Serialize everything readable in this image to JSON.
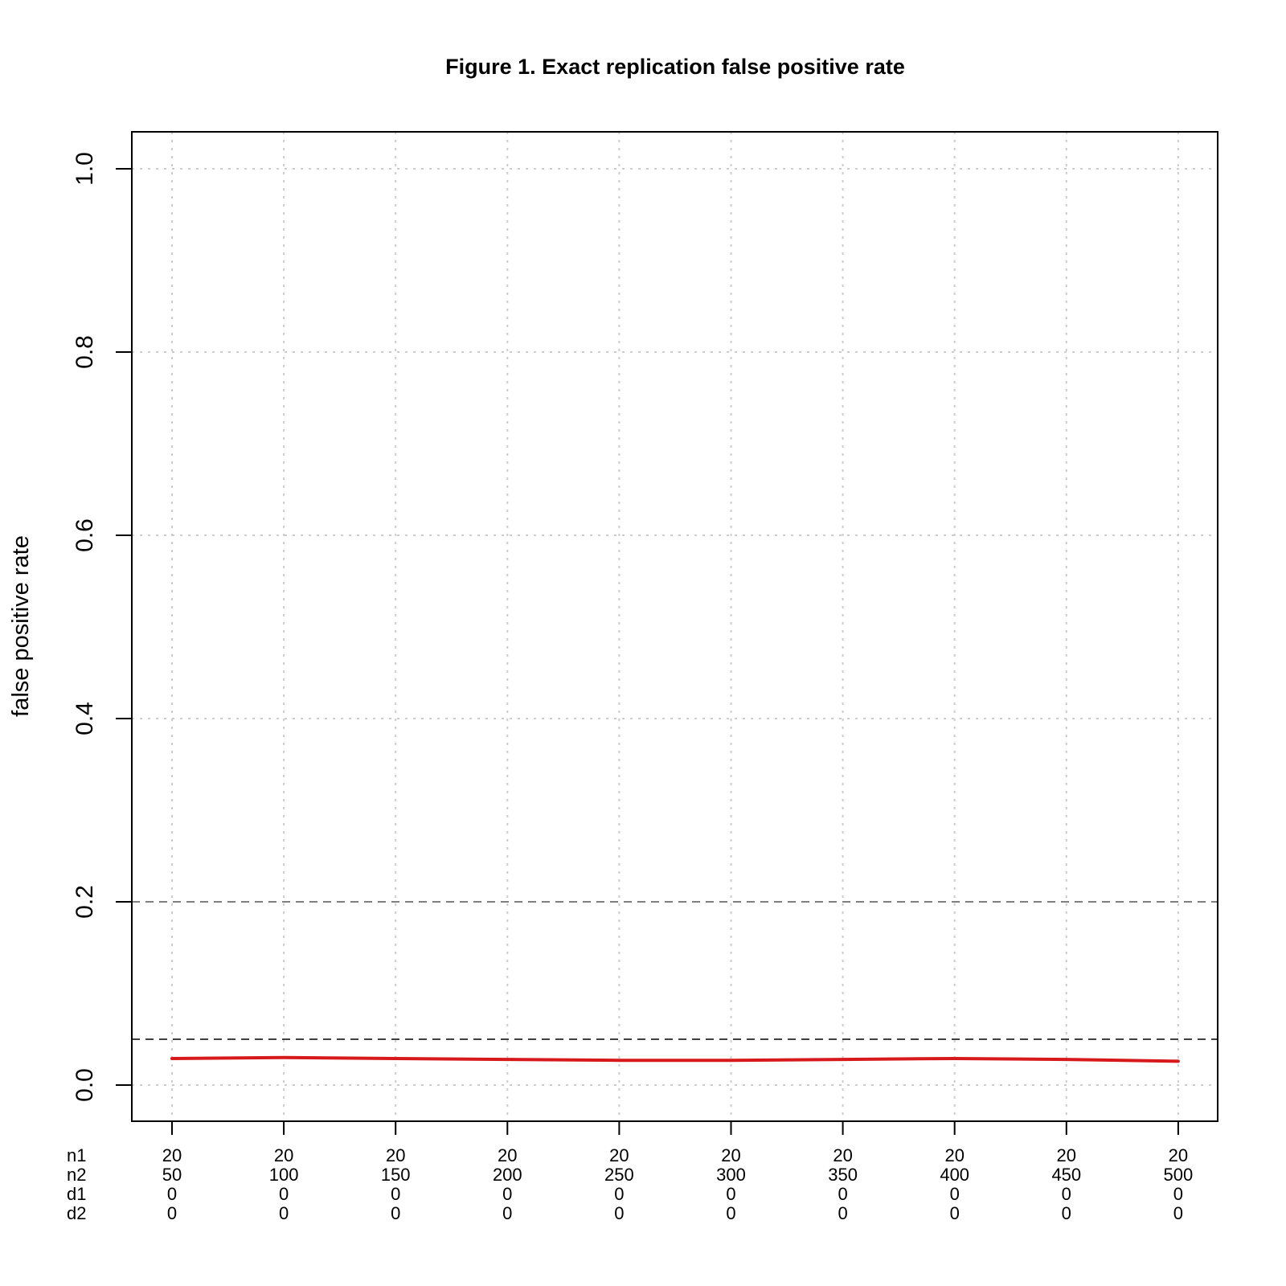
{
  "chart_data": {
    "type": "line",
    "title": "Figure 1. Exact replication false positive rate",
    "xlabel": "",
    "ylabel": "false positive rate",
    "ylim": [
      0,
      1
    ],
    "yticks": [
      "0.0",
      "0.2",
      "0.4",
      "0.6",
      "0.8",
      "1.0"
    ],
    "grid": true,
    "x": [
      1,
      2,
      3,
      4,
      5,
      6,
      7,
      8,
      9,
      10
    ],
    "x_tick_rows": {
      "labels": [
        "n1",
        "n2",
        "d1",
        "d2"
      ],
      "n1": [
        "20",
        "20",
        "20",
        "20",
        "20",
        "20",
        "20",
        "20",
        "20",
        "20"
      ],
      "n2": [
        "50",
        "100",
        "150",
        "200",
        "250",
        "300",
        "350",
        "400",
        "450",
        "500"
      ],
      "d1": [
        "0",
        "0",
        "0",
        "0",
        "0",
        "0",
        "0",
        "0",
        "0",
        "0"
      ],
      "d2": [
        "0",
        "0",
        "0",
        "0",
        "0",
        "0",
        "0",
        "0",
        "0",
        "0"
      ]
    },
    "series": [
      {
        "name": "false positive rate",
        "color": "#d7191c",
        "values": [
          0.029,
          0.03,
          0.029,
          0.028,
          0.027,
          0.027,
          0.028,
          0.029,
          0.028,
          0.026
        ]
      }
    ],
    "reference_lines": [
      {
        "y": 0.05,
        "style": "dashed",
        "color": "#000000"
      },
      {
        "y": 0.2,
        "style": "dashed",
        "color": "#555555"
      }
    ],
    "legend": null
  }
}
